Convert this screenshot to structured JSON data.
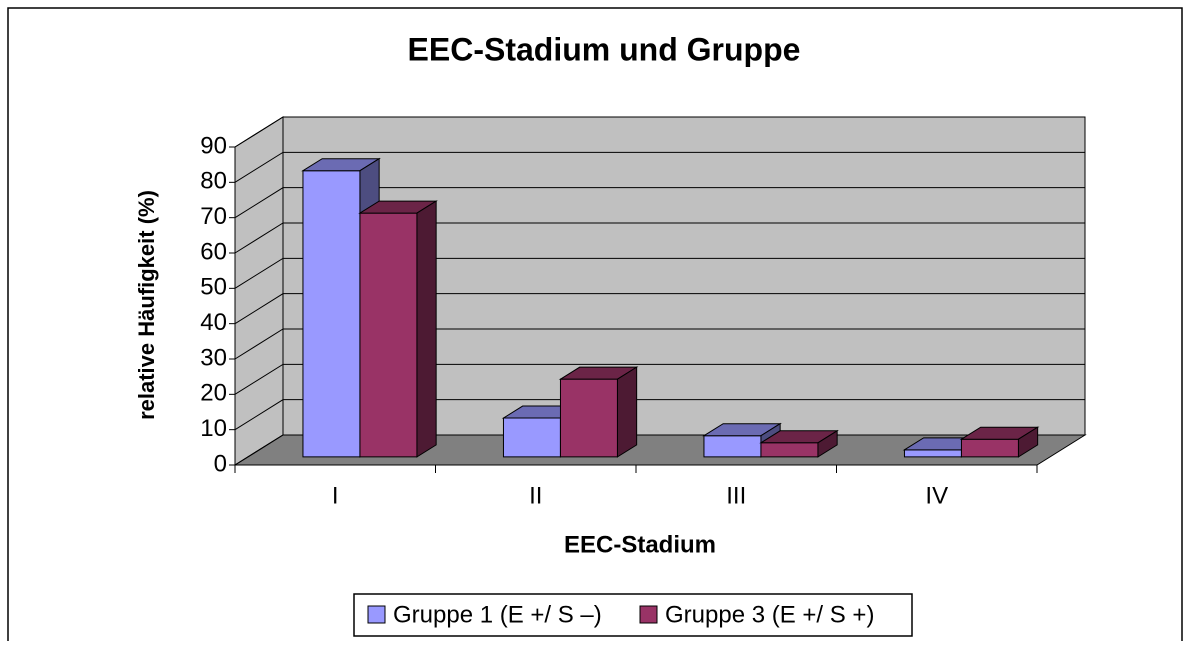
{
  "chart_data": {
    "type": "bar3d",
    "title": "EEC-Stadium und Gruppe",
    "x_label": "EEC-Stadium",
    "y_label": "relative Häufigkeit (%)",
    "categories": [
      "I",
      "II",
      "III",
      "IV"
    ],
    "series": [
      {
        "name": "Gruppe 1 (E +/ S –)",
        "color": "#9999ff",
        "values": [
          81,
          11,
          6,
          2
        ]
      },
      {
        "name": "Gruppe 3 (E +/ S +)",
        "color": "#993366",
        "values": [
          69,
          22,
          4,
          5
        ]
      }
    ],
    "ylim": [
      0,
      90
    ],
    "yticks": [
      0,
      10,
      20,
      30,
      40,
      50,
      60,
      70,
      80,
      90
    ],
    "grid": true,
    "legend": "bottom"
  }
}
